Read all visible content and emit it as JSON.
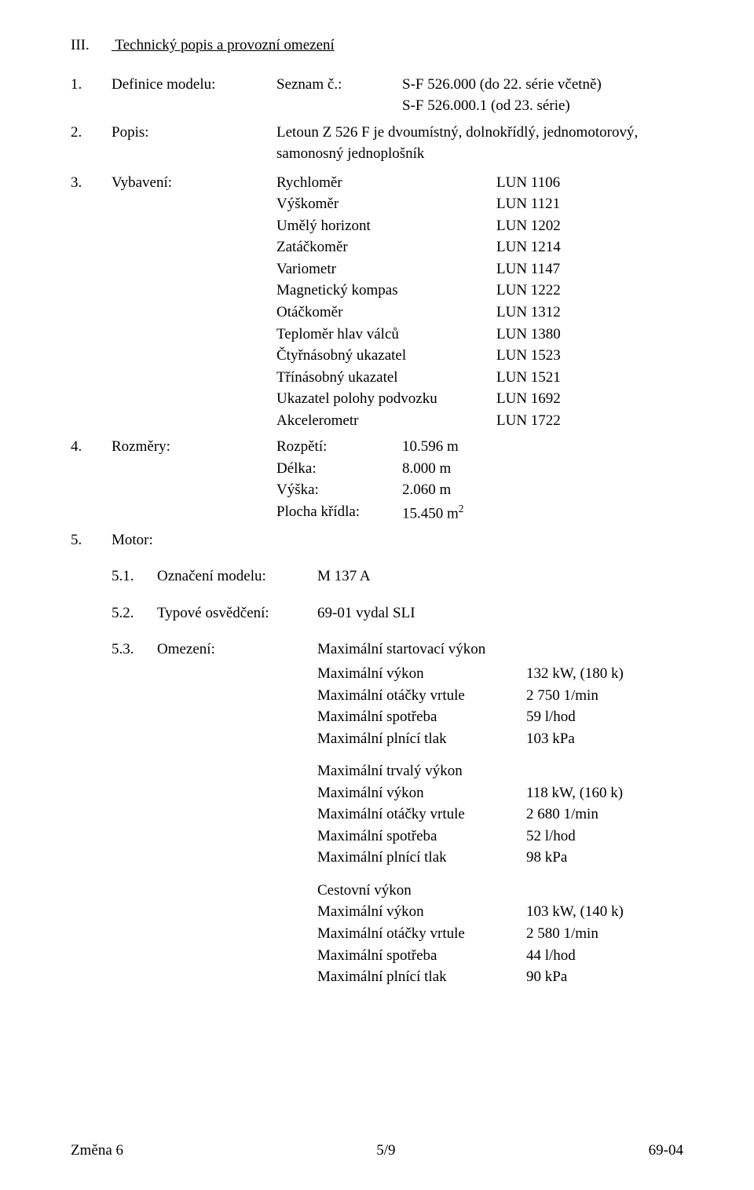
{
  "section": {
    "roman": "III.",
    "title": "Technický popis a provozní omezení"
  },
  "item1": {
    "num": "1.",
    "label": "Definice modelu:",
    "seznam": "Seznam č.:",
    "line1": "S-F 526.000 (do 22. série včetně)",
    "line2": "S-F 526.000.1 (od 23. série)"
  },
  "item2": {
    "num": "2.",
    "label": "Popis:",
    "text": "Letoun Z 526 F je dvoumístný, dolnokřídlý, jednomotorový, samonosný jednoplošník"
  },
  "item3": {
    "num": "3.",
    "label": "Vybavení:",
    "rows": [
      {
        "a": "Rychloměr",
        "b": "LUN 1106"
      },
      {
        "a": "Výškoměr",
        "b": "LUN 1121"
      },
      {
        "a": "Umělý horizont",
        "b": "LUN 1202"
      },
      {
        "a": "Zatáčkoměr",
        "b": "LUN 1214"
      },
      {
        "a": "Variometr",
        "b": "LUN 1147"
      },
      {
        "a": "Magnetický kompas",
        "b": "LUN 1222"
      },
      {
        "a": "Otáčkoměr",
        "b": "LUN 1312"
      },
      {
        "a": "Teploměr hlav válců",
        "b": "LUN 1380"
      },
      {
        "a": "Čtyřnásobný ukazatel",
        "b": "LUN 1523"
      },
      {
        "a": "Třínásobný ukazatel",
        "b": "LUN 1521"
      },
      {
        "a": "Ukazatel polohy podvozku",
        "b": "LUN 1692"
      },
      {
        "a": "Akcelerometr",
        "b": "LUN 1722"
      }
    ]
  },
  "item4": {
    "num": "4.",
    "label": "Rozměry:",
    "rows": [
      {
        "a": "Rozpětí:",
        "b": "10.596 m"
      },
      {
        "a": "Délka:",
        "b": "8.000 m"
      },
      {
        "a": "Výška:",
        "b": "2.060 m"
      },
      {
        "a": "Plocha křídla:",
        "b": "15.450 m",
        "sup": "2"
      }
    ]
  },
  "item5": {
    "num": "5.",
    "label": "Motor:"
  },
  "sub51": {
    "num": "5.1.",
    "label": "Označení modelu:",
    "value": "M 137 A"
  },
  "sub52": {
    "num": "5.2.",
    "label": "Typové osvědčení:",
    "value": "69-01 vydal SLI"
  },
  "sub53": {
    "num": "5.3.",
    "label": "Omezení:",
    "groups": [
      {
        "title": "Maximální startovací výkon",
        "rows": [
          {
            "a": "Maximální výkon",
            "b": "132 kW, (180 k)"
          },
          {
            "a": "Maximální otáčky vrtule",
            "b": "2 750 1/min"
          },
          {
            "a": "Maximální spotřeba",
            "b": "59 l/hod"
          },
          {
            "a": "Maximální plnící tlak",
            "b": "103 kPa"
          }
        ]
      },
      {
        "title": "Maximální trvalý výkon",
        "rows": [
          {
            "a": "Maximální výkon",
            "b": "118 kW, (160 k)"
          },
          {
            "a": "Maximální otáčky vrtule",
            "b": "2 680 1/min"
          },
          {
            "a": "Maximální spotřeba",
            "b": "52 l/hod"
          },
          {
            "a": "Maximální plnící tlak",
            "b": "98 kPa"
          }
        ]
      },
      {
        "title": "Cestovní výkon",
        "rows": [
          {
            "a": "Maximální výkon",
            "b": "103 kW, (140 k)"
          },
          {
            "a": "Maximální otáčky vrtule",
            "b": "2 580 1/min"
          },
          {
            "a": "Maximální spotřeba",
            "b": "44 l/hod"
          },
          {
            "a": "Maximální plnící tlak",
            "b": "90 kPa"
          }
        ]
      }
    ]
  },
  "footer": {
    "left": "Změna 6",
    "center": "5/9",
    "right": "69-04"
  }
}
